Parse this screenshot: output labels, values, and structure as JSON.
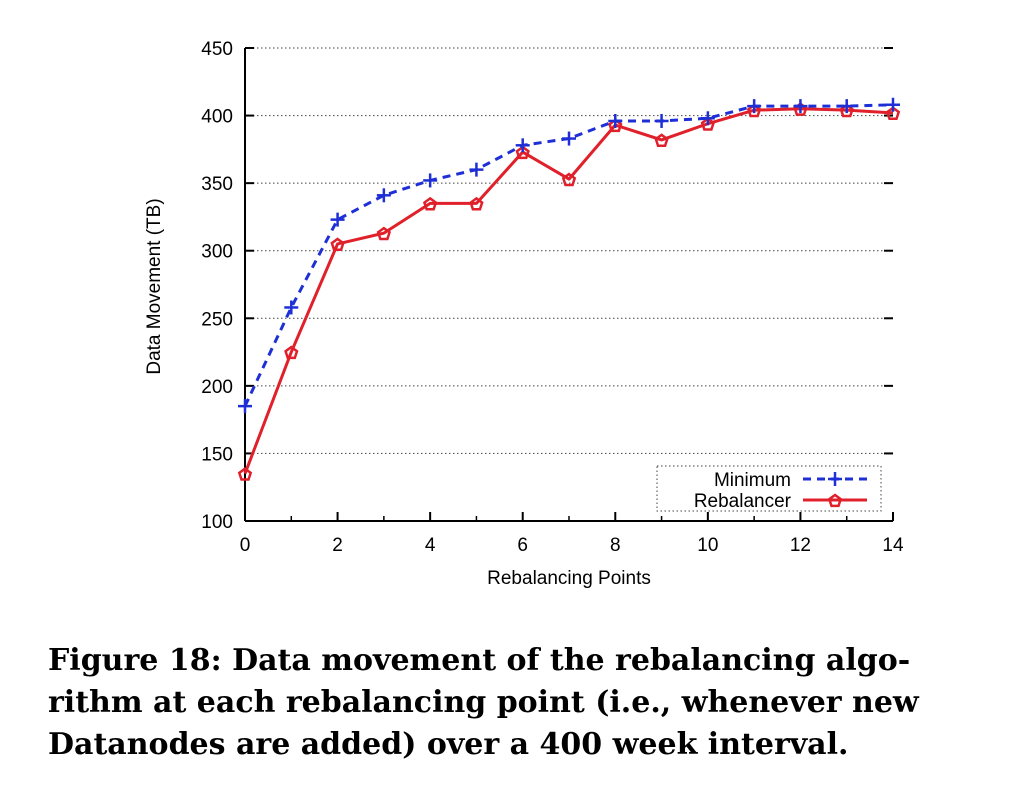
{
  "chart_data": {
    "type": "line",
    "xlabel": "Rebalancing Points",
    "ylabel": "Data Movement (TB)",
    "xlim": [
      0,
      14
    ],
    "ylim": [
      100,
      450
    ],
    "xticks": [
      0,
      2,
      4,
      6,
      8,
      10,
      12,
      14
    ],
    "yticks": [
      100,
      150,
      200,
      250,
      300,
      350,
      400,
      450
    ],
    "grid": "horizontal-dotted",
    "legend_position": "bottom-right",
    "series": [
      {
        "name": "Minimum",
        "color": "#1f2fd6",
        "line_style": "dashed",
        "marker": "plus",
        "x": [
          0,
          1,
          2,
          3,
          4,
          5,
          6,
          7,
          8,
          9,
          10,
          11,
          12,
          13,
          14
        ],
        "values": [
          185,
          258,
          323,
          341,
          352,
          360,
          378,
          383,
          396,
          396,
          398,
          407,
          407,
          407,
          408
        ]
      },
      {
        "name": "Rebalancer",
        "color": "#e0202a",
        "line_style": "solid",
        "marker": "pentagon",
        "x": [
          0,
          1,
          2,
          3,
          4,
          5,
          6,
          7,
          8,
          9,
          10,
          11,
          12,
          13,
          14
        ],
        "values": [
          135,
          225,
          305,
          313,
          335,
          335,
          373,
          353,
          393,
          382,
          394,
          404,
          405,
          404,
          402
        ]
      }
    ]
  },
  "caption": {
    "lines": [
      "Figure 18: Data movement of the rebalancing algo-",
      "rithm at each rebalancing point (i.e., whenever new",
      "Datanodes are added) over a 400 week interval."
    ]
  }
}
